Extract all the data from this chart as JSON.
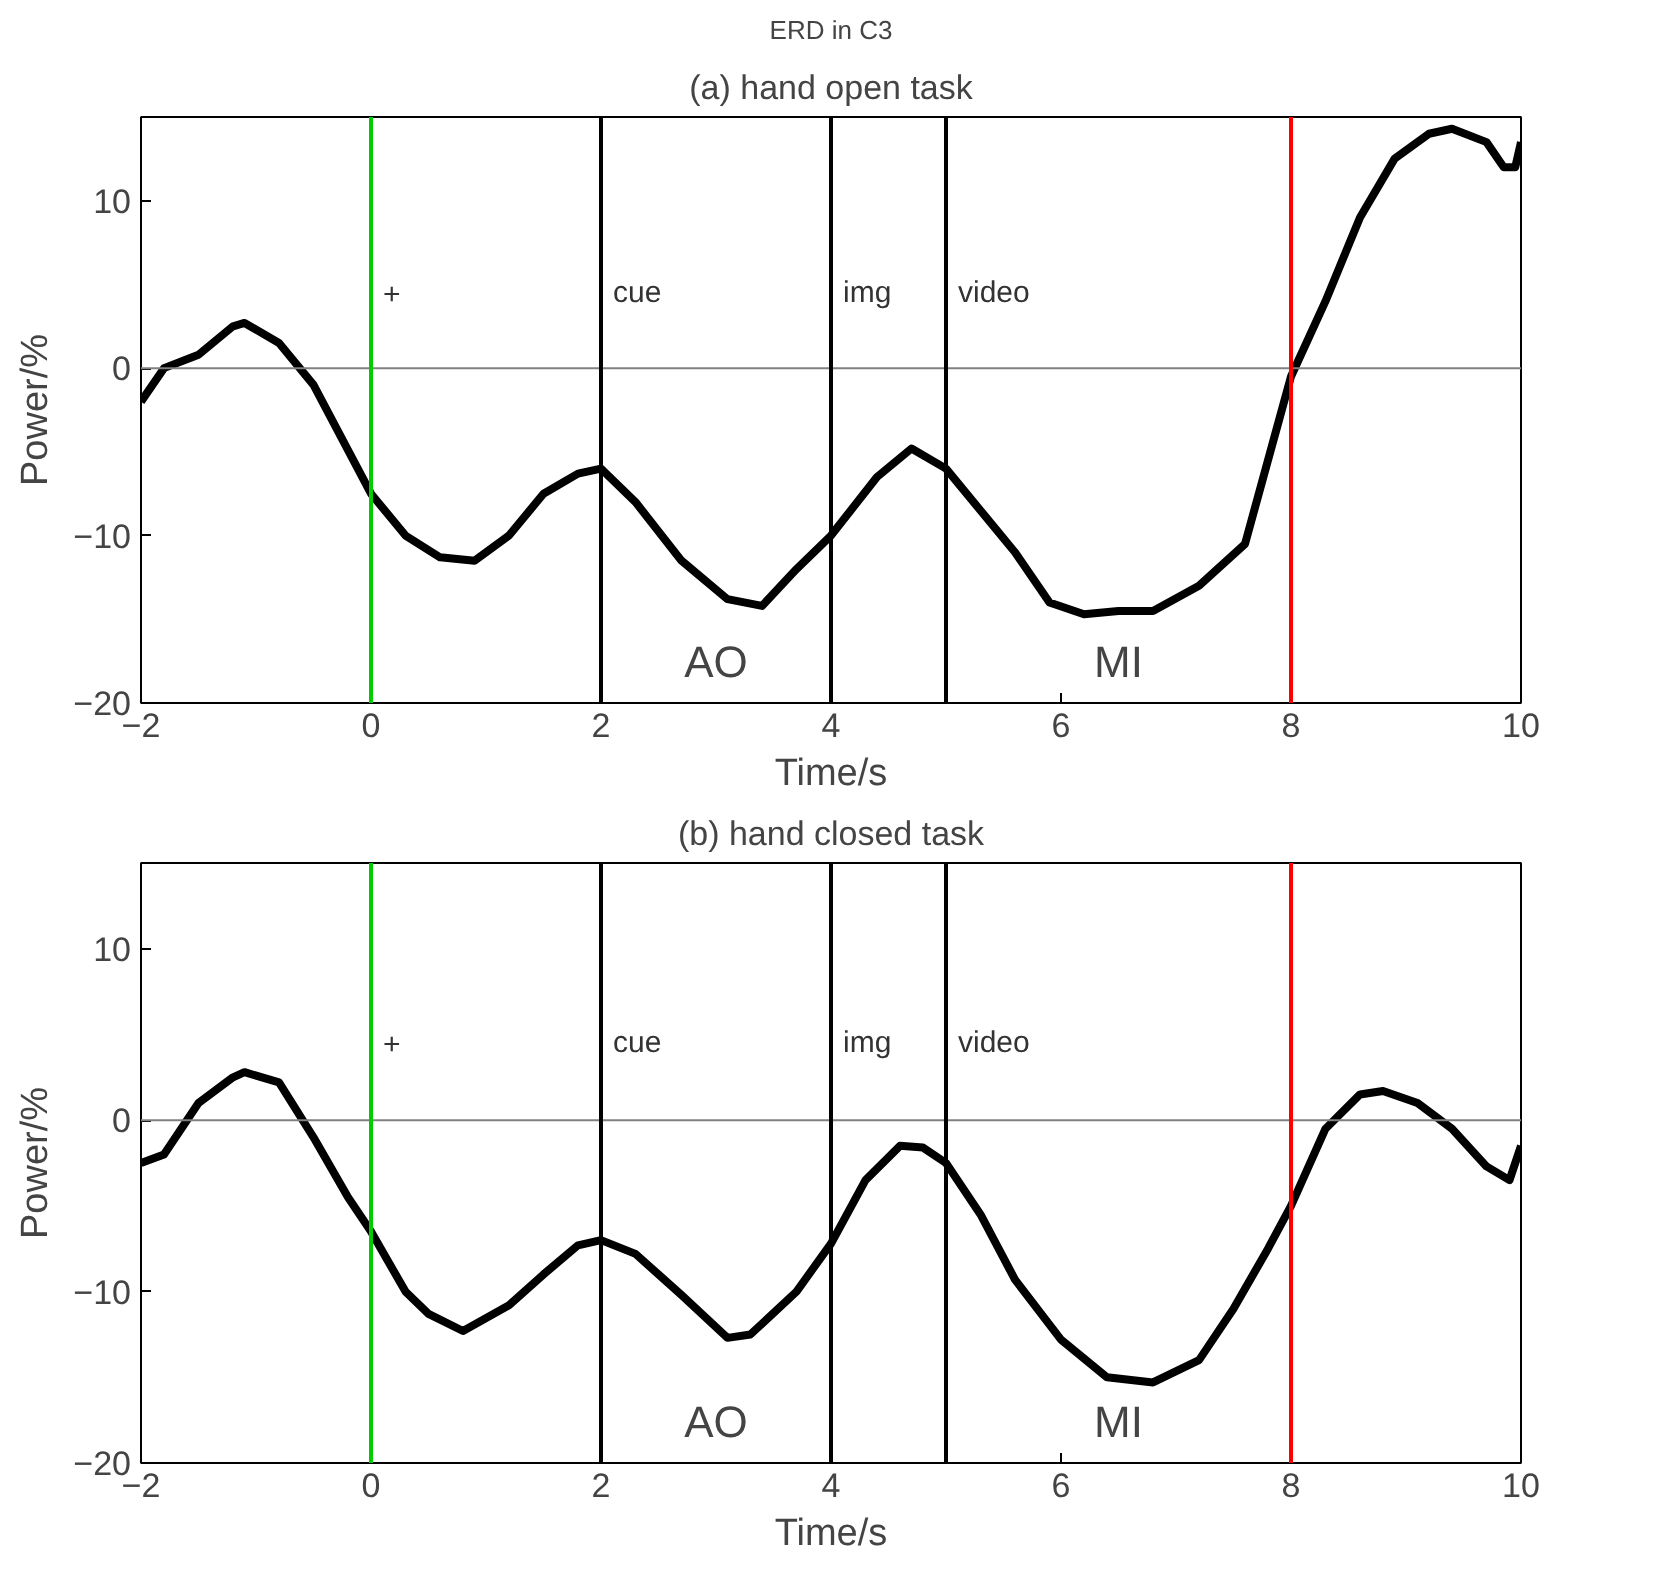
{
  "chart_data": [
    {
      "type": "line",
      "title": "ERD in C3",
      "subtitle": "(a) hand open task",
      "xlabel": "Time/s",
      "ylabel": "Power/%",
      "xlim": [
        -2,
        10
      ],
      "ylim": [
        -20,
        15
      ],
      "xticks": [
        -2,
        0,
        2,
        4,
        6,
        8,
        10
      ],
      "yticks": [
        -20,
        -10,
        0,
        10
      ],
      "grid": false,
      "marker": "none",
      "line_style": "solid",
      "series": [
        {
          "color": "#000000",
          "x": [
            -2,
            -1.8,
            -1.5,
            -1.2,
            -1.1,
            -0.8,
            -0.5,
            0,
            0.3,
            0.6,
            0.9,
            1.2,
            1.5,
            1.8,
            2,
            2.3,
            2.7,
            3.1,
            3.4,
            3.7,
            4,
            4.4,
            4.7,
            5,
            5.3,
            5.6,
            5.9,
            6.2,
            6.5,
            6.8,
            7.2,
            7.6,
            7.9,
            8,
            8.3,
            8.6,
            8.9,
            9.2,
            9.4,
            9.7,
            9.85,
            9.95,
            10
          ],
          "values": [
            -2,
            0,
            0.8,
            2.5,
            2.7,
            1.5,
            -1,
            -7.5,
            -10,
            -11.3,
            -11.5,
            -10,
            -7.5,
            -6.3,
            -6,
            -8,
            -11.5,
            -13.8,
            -14.2,
            -12,
            -10,
            -6.5,
            -4.8,
            -6,
            -8.5,
            -11,
            -14,
            -14.7,
            -14.5,
            -14.5,
            -13,
            -10.5,
            -3,
            -0.5,
            4,
            9,
            12.5,
            14,
            14.3,
            13.5,
            12,
            12,
            13.5
          ]
        }
      ],
      "ref_lines": [
        {
          "axis": "y",
          "value": 0,
          "color": "#808080"
        },
        {
          "axis": "x",
          "value": 0,
          "label": "+",
          "color": "#00cc00"
        },
        {
          "axis": "x",
          "value": 2,
          "label": "cue",
          "color": "#000000"
        },
        {
          "axis": "x",
          "value": 4,
          "label": "img",
          "color": "#000000"
        },
        {
          "axis": "x",
          "value": 5,
          "label": "video",
          "color": "#000000"
        },
        {
          "axis": "x",
          "value": 8,
          "color": "#ff0000"
        }
      ],
      "annotations": [
        "AO",
        "MI"
      ]
    },
    {
      "type": "line",
      "title": "(b) hand closed task",
      "xlabel": "Time/s",
      "ylabel": "Power/%",
      "xlim": [
        -2,
        10
      ],
      "ylim": [
        -20,
        15
      ],
      "xticks": [
        -2,
        0,
        2,
        4,
        6,
        8,
        10
      ],
      "yticks": [
        -20,
        -10,
        0,
        10
      ],
      "grid": false,
      "marker": "none",
      "line_style": "solid",
      "series": [
        {
          "color": "#000000",
          "x": [
            -2,
            -1.8,
            -1.5,
            -1.2,
            -1.1,
            -0.8,
            -0.5,
            -0.2,
            0,
            0.3,
            0.5,
            0.8,
            1.2,
            1.5,
            1.8,
            2,
            2.3,
            2.7,
            3.1,
            3.3,
            3.7,
            4,
            4.3,
            4.6,
            4.8,
            5,
            5.3,
            5.6,
            6,
            6.4,
            6.8,
            7.2,
            7.5,
            7.8,
            8,
            8.3,
            8.6,
            8.8,
            9.1,
            9.4,
            9.7,
            9.9,
            10
          ],
          "values": [
            -2.5,
            -2,
            1,
            2.5,
            2.8,
            2.2,
            -1,
            -4.5,
            -6.5,
            -10,
            -11.3,
            -12.3,
            -10.8,
            -9,
            -7.3,
            -7,
            -7.8,
            -10.2,
            -12.7,
            -12.5,
            -10,
            -7.2,
            -3.5,
            -1.5,
            -1.6,
            -2.5,
            -5.5,
            -9.3,
            -12.8,
            -15,
            -15.3,
            -14,
            -11,
            -7.5,
            -5,
            -0.5,
            1.5,
            1.7,
            1,
            -0.5,
            -2.7,
            -3.5,
            -1.5
          ]
        }
      ],
      "ref_lines": [
        {
          "axis": "y",
          "value": 0,
          "color": "#808080"
        },
        {
          "axis": "x",
          "value": 0,
          "label": "+",
          "color": "#00cc00"
        },
        {
          "axis": "x",
          "value": 2,
          "label": "cue",
          "color": "#000000"
        },
        {
          "axis": "x",
          "value": 4,
          "label": "img",
          "color": "#000000"
        },
        {
          "axis": "x",
          "value": 5,
          "label": "video",
          "color": "#000000"
        },
        {
          "axis": "x",
          "value": 8,
          "color": "#ff0000"
        }
      ],
      "annotations": [
        "AO",
        "MI"
      ]
    }
  ]
}
